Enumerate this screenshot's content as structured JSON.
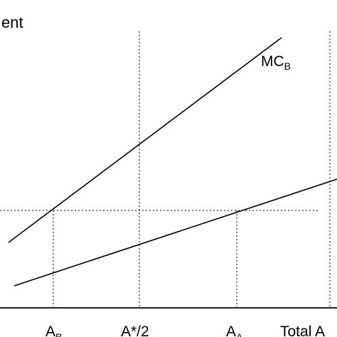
{
  "diagram": {
    "y_axis_label_fragment": "ent",
    "curve_mc_b": {
      "main": "MC",
      "sub": "B"
    },
    "ticks": [
      {
        "main": "A",
        "sub": "B"
      },
      {
        "main": "A*/2",
        "sub": ""
      },
      {
        "main": "A",
        "sub": "A"
      },
      {
        "main": "Total A",
        "sub": ""
      }
    ]
  }
}
